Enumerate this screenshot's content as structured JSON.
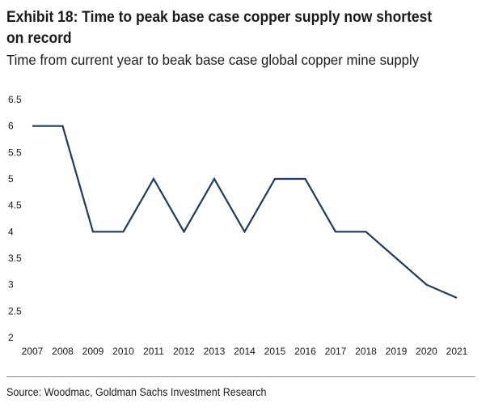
{
  "title": "Exhibit 18: Time to peak base case copper supply now shortest on record",
  "subtitle": "Time from current year to beak base case global copper mine supply",
  "source": "Source: Woodmac, Goldman Sachs Investment Research",
  "chart_data": {
    "type": "line",
    "title": "Exhibit 18: Time to peak base case copper supply now shortest on record",
    "subtitle": "Time from current year to beak base case global copper mine supply",
    "xlabel": "",
    "ylabel": "",
    "x": [
      "2007",
      "2008",
      "2009",
      "2010",
      "2011",
      "2012",
      "2013",
      "2014",
      "2015",
      "2016",
      "2017",
      "2018",
      "2019",
      "2020",
      "2021"
    ],
    "series": [
      {
        "values": [
          6,
          6,
          4,
          4,
          5,
          4,
          5,
          4,
          5,
          5,
          4,
          4,
          3.5,
          3,
          2.75
        ]
      }
    ],
    "ylim": [
      2,
      6.5
    ],
    "yticks": [
      "2",
      "2.5",
      "3",
      "3.5",
      "4",
      "4.5",
      "5",
      "5.5",
      "6",
      "6.5"
    ],
    "grid": false,
    "line_color": "#1f3a5a"
  }
}
